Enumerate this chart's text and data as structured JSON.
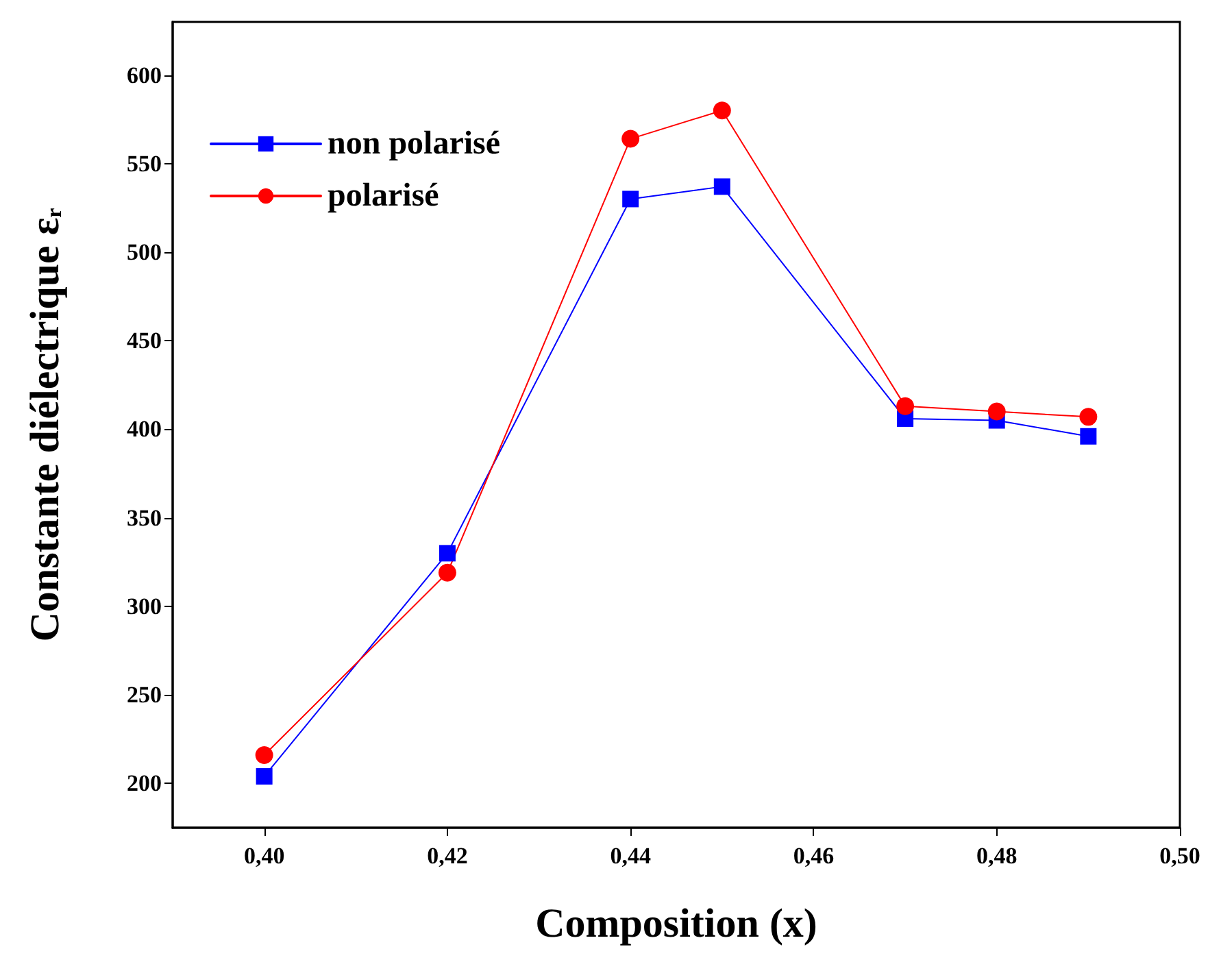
{
  "chart_data": {
    "type": "line",
    "xlabel": "Composition (x)",
    "ylabel": "Constante diélectrique ε$_{r}$",
    "x": [
      0.4,
      0.42,
      0.44,
      0.45,
      0.47,
      0.48,
      0.49
    ],
    "series": [
      {
        "name": "non polarisé",
        "color": "#0000ff",
        "marker": "square",
        "values": [
          204,
          330,
          530,
          537,
          406,
          405,
          396
        ]
      },
      {
        "name": "polarisé",
        "color": "#ff0000",
        "marker": "circle",
        "values": [
          216,
          319,
          564,
          580,
          413,
          410,
          407
        ]
      }
    ],
    "xlim": [
      0.39,
      0.5
    ],
    "xticks": [
      {
        "value": 0.4,
        "label": "0,40"
      },
      {
        "value": 0.42,
        "label": "0,42"
      },
      {
        "value": 0.44,
        "label": "0,44"
      },
      {
        "value": 0.46,
        "label": "0,46"
      },
      {
        "value": 0.48,
        "label": "0,48"
      },
      {
        "value": 0.5,
        "label": "0,50"
      }
    ],
    "ylim": [
      175,
      630
    ],
    "yticks": [
      200,
      250,
      300,
      350,
      400,
      450,
      500,
      550,
      600
    ],
    "grid": false,
    "legend": "top left",
    "line_style": "solid"
  }
}
